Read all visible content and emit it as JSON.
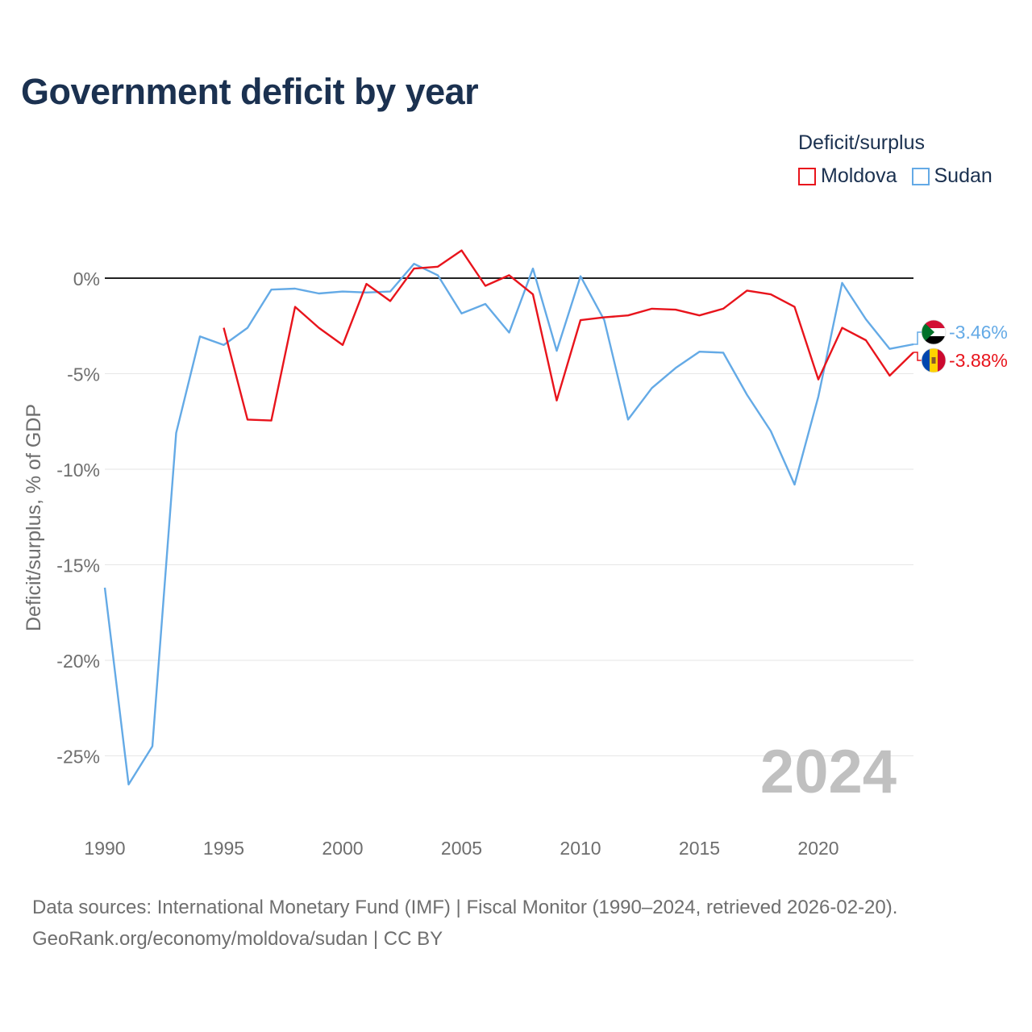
{
  "chart_data": {
    "type": "line",
    "title": "Government deficit by year",
    "xlabel": "",
    "ylabel": "Deficit/surplus, % of GDP",
    "xlim": [
      1990,
      2024
    ],
    "ylim": [
      -28,
      3
    ],
    "xticks": [
      1990,
      1995,
      2000,
      2005,
      2010,
      2015,
      2020
    ],
    "xtick_labels": [
      "1990",
      "1995",
      "2000",
      "2005",
      "2010",
      "2015",
      "2020"
    ],
    "yticks": [
      0,
      -5,
      -10,
      -15,
      -20,
      -25
    ],
    "ytick_labels": [
      "0%",
      "-5%",
      "-10%",
      "-15%",
      "-20%",
      "-25%"
    ],
    "legend_title": "Deficit/surplus",
    "legend_position": "top-right",
    "watermark_year": "2024",
    "series": [
      {
        "name": "Moldova",
        "color": "#e8141c",
        "end_label": "-3.88%",
        "flag": "moldova-flag",
        "x": [
          1995,
          1996,
          1997,
          1998,
          1999,
          2000,
          2001,
          2002,
          2003,
          2004,
          2005,
          2006,
          2007,
          2008,
          2009,
          2010,
          2011,
          2012,
          2013,
          2014,
          2015,
          2016,
          2017,
          2018,
          2019,
          2020,
          2021,
          2022,
          2023,
          2024
        ],
        "values": [
          -2.6,
          -7.4,
          -7.45,
          -1.5,
          -2.6,
          -3.5,
          -0.3,
          -1.2,
          0.5,
          0.6,
          1.45,
          -0.4,
          0.15,
          -0.85,
          -6.4,
          -2.2,
          -2.05,
          -1.95,
          -1.6,
          -1.65,
          -1.95,
          -1.6,
          -0.65,
          -0.85,
          -1.5,
          -5.3,
          -2.6,
          -3.25,
          -5.1,
          -3.88
        ]
      },
      {
        "name": "Sudan",
        "color": "#64aae6",
        "end_label": "-3.46%",
        "flag": "sudan-flag",
        "x": [
          1990,
          1991,
          1992,
          1993,
          1994,
          1995,
          1996,
          1997,
          1998,
          1999,
          2000,
          2001,
          2002,
          2003,
          2004,
          2005,
          2006,
          2007,
          2008,
          2009,
          2010,
          2011,
          2012,
          2013,
          2014,
          2015,
          2016,
          2017,
          2018,
          2019,
          2020,
          2021,
          2022,
          2023,
          2024
        ],
        "values": [
          -16.2,
          -26.5,
          -24.5,
          -8.1,
          -3.05,
          -3.5,
          -2.6,
          -0.6,
          -0.55,
          -0.8,
          -0.7,
          -0.75,
          -0.7,
          0.75,
          0.15,
          -1.85,
          -1.35,
          -2.85,
          0.5,
          -3.8,
          0.1,
          -2.2,
          -7.4,
          -5.75,
          -4.7,
          -3.85,
          -3.9,
          -6.1,
          -8,
          -10.8,
          -6.2,
          -0.25,
          -2.15,
          -3.7,
          -3.46
        ]
      }
    ]
  },
  "footer": {
    "line1": "Data sources: International Monetary Fund (IMF) | Fiscal Monitor (1990–2024, retrieved 2026-02-20).",
    "line2": "GeoRank.org/economy/moldova/sudan | CC BY"
  }
}
